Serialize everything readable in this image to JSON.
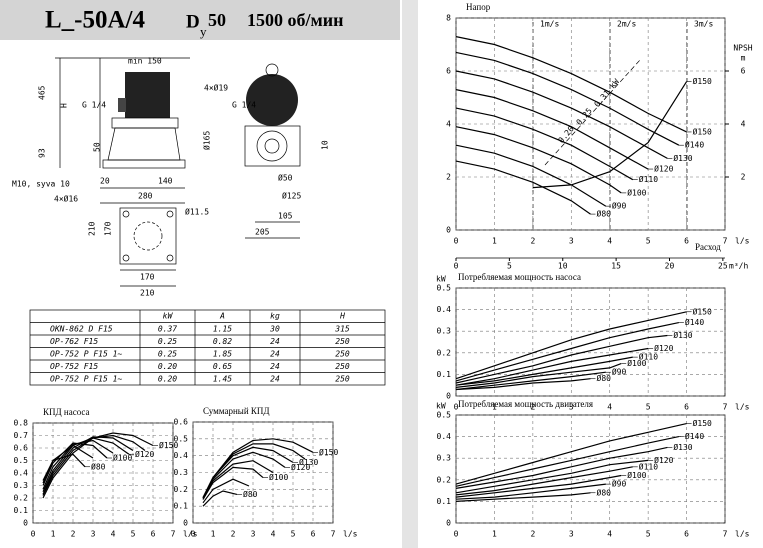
{
  "header": {
    "model": "L_-50A/4",
    "d_letter": "D",
    "d_sub": "y",
    "d_value": "50",
    "speed": "1500 об/мин"
  },
  "drawing": {
    "labels": [
      "min 150",
      "465",
      "H",
      "G 1/4",
      "G 1/4",
      "4×Ø19",
      "Ø165",
      "50",
      "93",
      "10",
      "M10, syva 10",
      "20",
      "140",
      "280",
      "4×Ø16",
      "Ø50",
      "Ø125",
      "Ø11.5",
      "105",
      "205",
      "210",
      "170",
      "170",
      "210"
    ]
  },
  "table": {
    "header": [
      "kW",
      "A",
      "kg",
      "H"
    ],
    "rows": [
      [
        "OKN-862 D F15",
        "0.37",
        "1.15",
        "30",
        "315"
      ],
      [
        "OP-762 F15",
        "0.25",
        "0.82",
        "24",
        "250"
      ],
      [
        "OP-752 P F15 1~",
        "0.25",
        "1.85",
        "24",
        "250"
      ],
      [
        "OP-752 F15",
        "0.20",
        "0.65",
        "24",
        "250"
      ],
      [
        "OP-752 P F15 1~",
        "0.20",
        "1.45",
        "24",
        "250"
      ]
    ]
  },
  "chart_data": [
    {
      "type": "line",
      "title": "КПД насоса",
      "xlabel": "l/s",
      "xlim": [
        0,
        7
      ],
      "xticks": [
        0,
        1,
        2,
        3,
        4,
        5,
        6,
        7
      ],
      "ylim": [
        0,
        0.8
      ],
      "yticks": [
        0,
        0.1,
        0.2,
        0.3,
        0.4,
        0.5,
        0.6,
        0.7,
        0.8
      ],
      "grid": true,
      "color": "#000000",
      "series": [
        {
          "name": "Ø150",
          "x": [
            0.5,
            1,
            2,
            3,
            4,
            5,
            6
          ],
          "values": [
            0.2,
            0.36,
            0.56,
            0.68,
            0.72,
            0.7,
            0.62
          ]
        },
        {
          "x": [
            0.5,
            1,
            2,
            3,
            4,
            5,
            5.6
          ],
          "values": [
            0.22,
            0.38,
            0.58,
            0.68,
            0.7,
            0.65,
            0.58
          ]
        },
        {
          "x": [
            0.5,
            1,
            2,
            3,
            4,
            5
          ],
          "values": [
            0.23,
            0.4,
            0.6,
            0.69,
            0.68,
            0.58
          ]
        },
        {
          "name": "Ø120",
          "x": [
            0.5,
            1,
            2,
            3,
            4,
            4.8
          ],
          "values": [
            0.25,
            0.42,
            0.62,
            0.68,
            0.64,
            0.55
          ]
        },
        {
          "x": [
            0.5,
            1,
            2,
            3,
            4
          ],
          "values": [
            0.27,
            0.45,
            0.63,
            0.66,
            0.56
          ]
        },
        {
          "name": "Ø100",
          "x": [
            0.5,
            1,
            2,
            3,
            3.7
          ],
          "values": [
            0.3,
            0.48,
            0.64,
            0.62,
            0.52
          ]
        },
        {
          "x": [
            0.5,
            1,
            2,
            3
          ],
          "values": [
            0.32,
            0.5,
            0.62,
            0.52
          ]
        },
        {
          "name": "Ø80",
          "x": [
            0.5,
            1,
            2,
            2.6
          ],
          "values": [
            0.34,
            0.5,
            0.55,
            0.45
          ]
        }
      ]
    },
    {
      "type": "line",
      "title": "Суммарный КПД",
      "xlabel": "l/s",
      "xlim": [
        0,
        7
      ],
      "xticks": [
        0,
        1,
        2,
        3,
        4,
        5,
        6,
        7
      ],
      "ylim": [
        0,
        0.6
      ],
      "yticks": [
        0,
        0.1,
        0.2,
        0.3,
        0.4,
        0.5,
        0.6
      ],
      "grid": true,
      "color": "#000000",
      "series": [
        {
          "name": "Ø150",
          "x": [
            0.5,
            1,
            2,
            3,
            4,
            5,
            6
          ],
          "values": [
            0.15,
            0.27,
            0.42,
            0.49,
            0.5,
            0.48,
            0.42
          ]
        },
        {
          "x": [
            0.5,
            1,
            2,
            3,
            4,
            5,
            5.6
          ],
          "values": [
            0.15,
            0.27,
            0.41,
            0.47,
            0.47,
            0.43,
            0.38
          ]
        },
        {
          "name": "Ø130",
          "x": [
            0.5,
            1,
            2,
            3,
            4,
            5
          ],
          "values": [
            0.15,
            0.27,
            0.4,
            0.45,
            0.43,
            0.36
          ]
        },
        {
          "name": "Ø120",
          "x": [
            0.5,
            1,
            2,
            3,
            4,
            4.6
          ],
          "values": [
            0.15,
            0.26,
            0.38,
            0.42,
            0.38,
            0.33
          ]
        },
        {
          "x": [
            0.5,
            1,
            2,
            3,
            4
          ],
          "values": [
            0.14,
            0.25,
            0.35,
            0.37,
            0.3
          ]
        },
        {
          "name": "Ø100",
          "x": [
            0.5,
            1,
            2,
            3,
            3.5
          ],
          "values": [
            0.14,
            0.24,
            0.33,
            0.32,
            0.27
          ]
        },
        {
          "x": [
            0.5,
            1,
            2,
            2.8
          ],
          "values": [
            0.12,
            0.2,
            0.26,
            0.22
          ]
        },
        {
          "name": "Ø80",
          "x": [
            0.5,
            1,
            1.5,
            2.2
          ],
          "values": [
            0.1,
            0.16,
            0.19,
            0.17
          ]
        }
      ]
    },
    {
      "type": "line",
      "title": "Напор",
      "xlabel": "l/s",
      "x_title": "Расход",
      "xlim": [
        0,
        7
      ],
      "xticks": [
        0,
        1,
        2,
        3,
        4,
        5,
        6,
        7
      ],
      "x2label": "m³/h",
      "x2lim": [
        0,
        25.2
      ],
      "x2ticks": [
        0,
        5,
        10,
        15,
        20,
        25
      ],
      "ylim": [
        0,
        8
      ],
      "yticks": [
        0,
        2,
        4,
        6,
        8
      ],
      "y2label": [
        "NPSH",
        "m"
      ],
      "y2lim": [
        0,
        8
      ],
      "y2ticks": [
        2,
        4,
        6
      ],
      "grid": true,
      "color": "#000000",
      "velocity_labels": [
        "1m/s",
        "2m/s",
        "3m/s"
      ],
      "power_labels": [
        "0.20",
        "0.25",
        "0.31 kW"
      ],
      "series": [
        {
          "name": "Ø150",
          "x": [
            0,
            1,
            2,
            3,
            4,
            5,
            6
          ],
          "values": [
            7.3,
            7.0,
            6.5,
            5.9,
            5.2,
            4.4,
            3.7
          ]
        },
        {
          "name": "Ø140",
          "x": [
            0,
            1,
            2,
            3,
            4,
            5,
            5.8
          ],
          "values": [
            6.7,
            6.4,
            5.9,
            5.3,
            4.6,
            3.8,
            3.2
          ]
        },
        {
          "name": "Ø130",
          "x": [
            0,
            1,
            2,
            3,
            4,
            5,
            5.5
          ],
          "values": [
            6.0,
            5.7,
            5.2,
            4.6,
            3.9,
            3.1,
            2.7
          ]
        },
        {
          "name": "Ø120",
          "x": [
            0,
            1,
            2,
            3,
            4,
            5
          ],
          "values": [
            5.3,
            5.0,
            4.5,
            3.9,
            3.1,
            2.3
          ]
        },
        {
          "name": "Ø110",
          "x": [
            0,
            1,
            2,
            3,
            4,
            4.6
          ],
          "values": [
            4.6,
            4.3,
            3.8,
            3.2,
            2.4,
            1.9
          ]
        },
        {
          "name": "Ø100",
          "x": [
            0,
            1,
            2,
            3,
            4,
            4.3
          ],
          "values": [
            3.9,
            3.6,
            3.1,
            2.5,
            1.7,
            1.4
          ]
        },
        {
          "name": "Ø90",
          "x": [
            0,
            1,
            2,
            3,
            3.9
          ],
          "values": [
            3.2,
            2.9,
            2.4,
            1.7,
            0.9
          ]
        },
        {
          "name": "Ø80",
          "x": [
            0,
            1,
            2,
            3,
            3.5
          ],
          "values": [
            2.6,
            2.3,
            1.8,
            1.1,
            0.6
          ]
        },
        {
          "name": "Ø150",
          "axis": "y2",
          "x": [
            2,
            3,
            4,
            5,
            6
          ],
          "values": [
            1.6,
            1.7,
            2.2,
            3.3,
            5.6
          ]
        }
      ]
    },
    {
      "type": "line",
      "title": "Потребляемая мощность насоса",
      "ylabel": "kW",
      "xlabel": "l/s",
      "xlim": [
        0,
        7
      ],
      "xticks": [
        0,
        1,
        2,
        3,
        4,
        5,
        6,
        7
      ],
      "ylim": [
        0,
        0.5
      ],
      "yticks": [
        0,
        0.1,
        0.2,
        0.3,
        0.4,
        0.5
      ],
      "grid": true,
      "color": "#000000",
      "series": [
        {
          "name": "Ø150",
          "x": [
            0,
            1,
            2,
            3,
            4,
            5,
            6
          ],
          "values": [
            0.08,
            0.14,
            0.2,
            0.26,
            0.31,
            0.35,
            0.39
          ]
        },
        {
          "name": "Ø140",
          "x": [
            0,
            1,
            2,
            3,
            4,
            5,
            5.8
          ],
          "values": [
            0.07,
            0.12,
            0.17,
            0.22,
            0.27,
            0.31,
            0.34
          ]
        },
        {
          "name": "Ø130",
          "x": [
            0,
            1,
            2,
            3,
            4,
            5,
            5.5
          ],
          "values": [
            0.06,
            0.1,
            0.14,
            0.19,
            0.23,
            0.27,
            0.28
          ]
        },
        {
          "name": "Ø120",
          "x": [
            0,
            1,
            2,
            3,
            4,
            5
          ],
          "values": [
            0.05,
            0.08,
            0.12,
            0.16,
            0.19,
            0.22
          ]
        },
        {
          "name": "Ø110",
          "x": [
            0,
            1,
            2,
            3,
            4,
            4.6
          ],
          "values": [
            0.05,
            0.07,
            0.1,
            0.13,
            0.16,
            0.18
          ]
        },
        {
          "name": "Ø100",
          "x": [
            0,
            1,
            2,
            3,
            4,
            4.3
          ],
          "values": [
            0.04,
            0.06,
            0.09,
            0.11,
            0.13,
            0.15
          ]
        },
        {
          "name": "Ø90",
          "x": [
            0,
            1,
            2,
            3,
            3.9
          ],
          "values": [
            0.03,
            0.05,
            0.07,
            0.09,
            0.11
          ]
        },
        {
          "name": "Ø80",
          "x": [
            0,
            1,
            2,
            3,
            3.5
          ],
          "values": [
            0.03,
            0.04,
            0.06,
            0.07,
            0.08
          ]
        }
      ]
    },
    {
      "type": "line",
      "title": "Потребляемая мощность двигателя",
      "ylabel": "kW",
      "xlabel": "l/s",
      "xlim": [
        0,
        7
      ],
      "xticks": [
        0,
        1,
        2,
        3,
        4,
        5,
        6,
        7
      ],
      "ylim": [
        0,
        0.5
      ],
      "yticks": [
        0,
        0.1,
        0.2,
        0.3,
        0.4,
        0.5
      ],
      "grid": true,
      "color": "#000000",
      "series": [
        {
          "name": "Ø150",
          "x": [
            0,
            1,
            2,
            3,
            4,
            5,
            6
          ],
          "values": [
            0.18,
            0.23,
            0.28,
            0.33,
            0.38,
            0.42,
            0.46
          ]
        },
        {
          "name": "Ø140",
          "x": [
            0,
            1,
            2,
            3,
            4,
            5,
            5.8
          ],
          "values": [
            0.17,
            0.21,
            0.25,
            0.29,
            0.33,
            0.37,
            0.4
          ]
        },
        {
          "name": "Ø130",
          "x": [
            0,
            1,
            2,
            3,
            4,
            5,
            5.5
          ],
          "values": [
            0.16,
            0.19,
            0.22,
            0.26,
            0.3,
            0.33,
            0.35
          ]
        },
        {
          "name": "Ø120",
          "x": [
            0,
            1,
            2,
            3,
            4,
            5
          ],
          "values": [
            0.14,
            0.17,
            0.2,
            0.23,
            0.27,
            0.29
          ]
        },
        {
          "name": "Ø110",
          "x": [
            0,
            1,
            2,
            3,
            4,
            4.6
          ],
          "values": [
            0.13,
            0.15,
            0.18,
            0.21,
            0.24,
            0.26
          ]
        },
        {
          "name": "Ø100",
          "x": [
            0,
            1,
            2,
            3,
            4,
            4.3
          ],
          "values": [
            0.12,
            0.14,
            0.16,
            0.18,
            0.21,
            0.22
          ]
        },
        {
          "name": "Ø90",
          "x": [
            0,
            1,
            2,
            3,
            3.9
          ],
          "values": [
            0.11,
            0.12,
            0.14,
            0.16,
            0.18
          ]
        },
        {
          "name": "Ø80",
          "x": [
            0,
            1,
            2,
            3,
            3.5
          ],
          "values": [
            0.1,
            0.11,
            0.12,
            0.13,
            0.14
          ]
        }
      ]
    }
  ]
}
